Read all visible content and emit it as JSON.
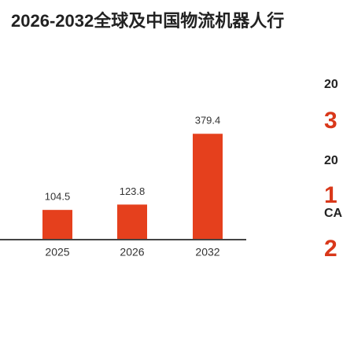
{
  "chart_data": {
    "type": "bar",
    "title": "2026-2032全球及中国物流机器人行",
    "categories": [
      "2025",
      "2026",
      "2032"
    ],
    "values": [
      104.5,
      123.8,
      379.4
    ],
    "color": "#e5401d",
    "ylim": [
      0,
      400
    ]
  },
  "side_panel": {
    "items": [
      {
        "label": "20",
        "value": "3"
      },
      {
        "label": "20",
        "value": "1"
      },
      {
        "label": "CA",
        "value": "2"
      }
    ]
  }
}
